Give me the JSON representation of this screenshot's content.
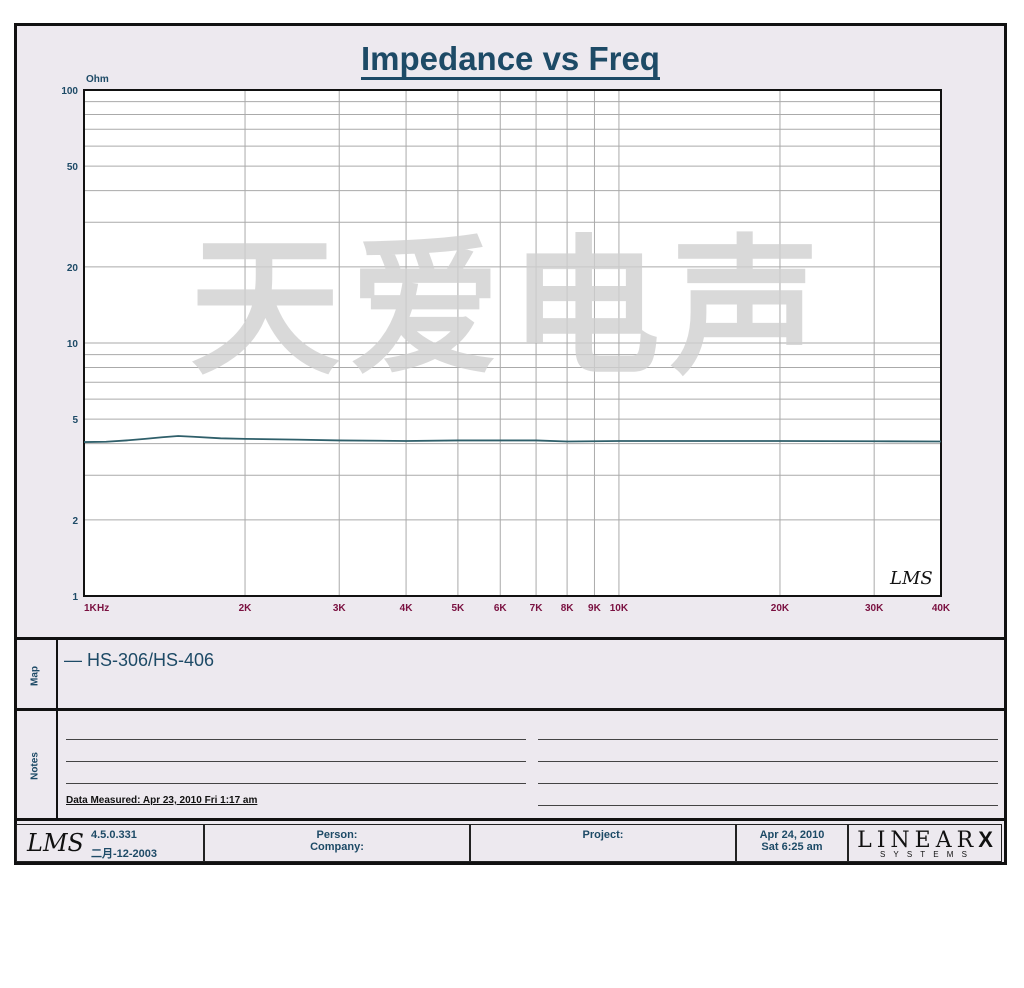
{
  "chart_data": {
    "type": "line",
    "title": "Impedance vs Freq",
    "ylabel": "Ohm",
    "xlabel": "Hz",
    "x_scale": "log",
    "y_scale": "log",
    "xlim": [
      1000,
      40000
    ],
    "ylim": [
      1,
      100
    ],
    "grid": true,
    "x_ticks": [
      {
        "v": 1000,
        "l": "1K"
      },
      {
        "v": 2000,
        "l": "2K"
      },
      {
        "v": 3000,
        "l": "3K"
      },
      {
        "v": 4000,
        "l": "4K"
      },
      {
        "v": 5000,
        "l": "5K"
      },
      {
        "v": 6000,
        "l": "6K"
      },
      {
        "v": 7000,
        "l": "7K"
      },
      {
        "v": 8000,
        "l": "8K"
      },
      {
        "v": 9000,
        "l": "9K"
      },
      {
        "v": 10000,
        "l": "10K"
      },
      {
        "v": 20000,
        "l": "20K"
      },
      {
        "v": 30000,
        "l": "30K"
      },
      {
        "v": 40000,
        "l": "40K"
      }
    ],
    "y_ticks": [
      {
        "v": 1,
        "l": "1"
      },
      {
        "v": 2,
        "l": "2"
      },
      {
        "v": 5,
        "l": "5"
      },
      {
        "v": 10,
        "l": "10"
      },
      {
        "v": 20,
        "l": "20"
      },
      {
        "v": 50,
        "l": "50"
      },
      {
        "v": 100,
        "l": "100"
      }
    ],
    "series": [
      {
        "name": "HS-306/HS-406",
        "color": "#2f5f6a",
        "x": [
          1000,
          1100,
          1200,
          1300,
          1400,
          1500,
          1600,
          1800,
          2000,
          2500,
          3000,
          4000,
          5000,
          7000,
          8000,
          10000,
          15000,
          20000,
          30000,
          40000
        ],
        "y": [
          4.06,
          4.07,
          4.12,
          4.18,
          4.24,
          4.29,
          4.26,
          4.2,
          4.18,
          4.15,
          4.12,
          4.1,
          4.12,
          4.12,
          4.08,
          4.1,
          4.1,
          4.1,
          4.09,
          4.08
        ]
      }
    ]
  },
  "watermark": "天爱电声",
  "plot_logo": "LMS",
  "map": {
    "label": "Map",
    "entry": "— HS-306/HS-406"
  },
  "notes": {
    "label": "Notes",
    "measured": "Data Measured: Apr 23, 2010  Fri  1:17 am"
  },
  "footer": {
    "logo": "LMS",
    "version": "4.5.0.331",
    "build_date": "二月-12-2003",
    "person": "Person:",
    "company": "Company:",
    "project": "Project:",
    "date": "Apr 24, 2010",
    "time": "Sat  6:25 am",
    "brand": "LINEAR",
    "brand_x": "X",
    "brand_sub": "S Y S T E M S"
  }
}
